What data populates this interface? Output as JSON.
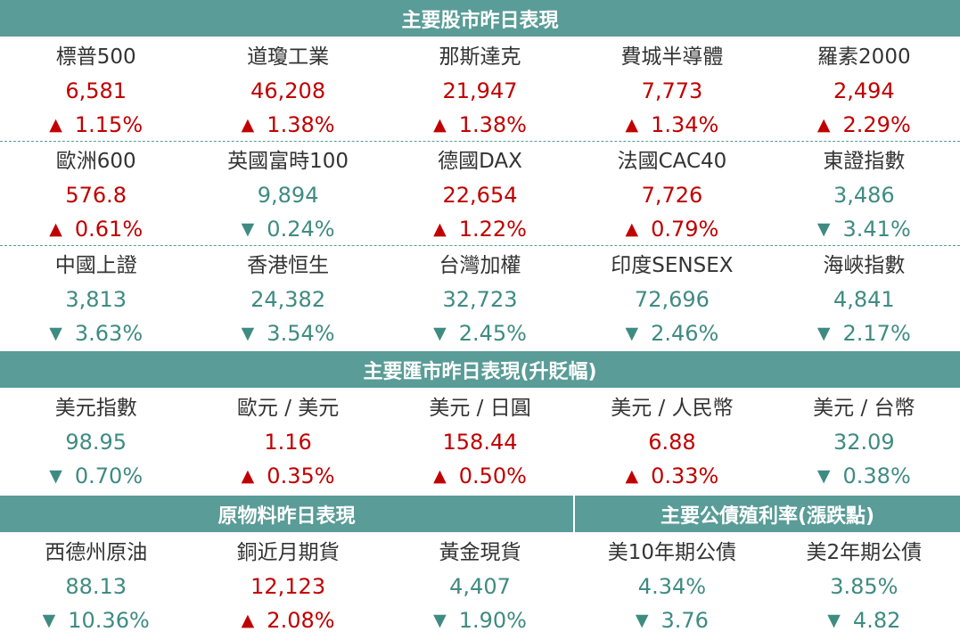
{
  "sections": {
    "stocks": {
      "title": "主要股市昨日表現",
      "rows": [
        [
          {
            "name": "標普500",
            "value": "6,581",
            "dir": "up",
            "change": "1.15%"
          },
          {
            "name": "道瓊工業",
            "value": "46,208",
            "dir": "up",
            "change": "1.38%"
          },
          {
            "name": "那斯達克",
            "value": "21,947",
            "dir": "up",
            "change": "1.38%"
          },
          {
            "name": "費城半導體",
            "value": "7,773",
            "dir": "up",
            "change": "1.34%"
          },
          {
            "name": "羅素2000",
            "value": "2,494",
            "dir": "up",
            "change": "2.29%"
          }
        ],
        [
          {
            "name": "歐洲600",
            "value": "576.8",
            "dir": "up",
            "change": "0.61%"
          },
          {
            "name": "英國富時100",
            "value": "9,894",
            "dir": "down",
            "change": "0.24%"
          },
          {
            "name": "德國DAX",
            "value": "22,654",
            "dir": "up",
            "change": "1.22%"
          },
          {
            "name": "法國CAC40",
            "value": "7,726",
            "dir": "up",
            "change": "0.79%"
          },
          {
            "name": "東證指數",
            "value": "3,486",
            "dir": "down",
            "change": "3.41%"
          }
        ],
        [
          {
            "name": "中國上證",
            "value": "3,813",
            "dir": "down",
            "change": "3.63%"
          },
          {
            "name": "香港恒生",
            "value": "24,382",
            "dir": "down",
            "change": "3.54%"
          },
          {
            "name": "台灣加權",
            "value": "32,723",
            "dir": "down",
            "change": "2.45%"
          },
          {
            "name": "印度SENSEX",
            "value": "72,696",
            "dir": "down",
            "change": "2.46%"
          },
          {
            "name": "海峽指數",
            "value": "4,841",
            "dir": "down",
            "change": "2.17%"
          }
        ]
      ]
    },
    "fx": {
      "title": "主要匯市昨日表現(升貶幅)",
      "rows": [
        [
          {
            "name": "美元指數",
            "value": "98.95",
            "dir": "down",
            "change": "0.70%"
          },
          {
            "name": "歐元 / 美元",
            "value": "1.16",
            "dir": "up",
            "change": "0.35%"
          },
          {
            "name": "美元 / 日圓",
            "value": "158.44",
            "dir": "up",
            "change": "0.50%"
          },
          {
            "name": "美元 / 人民幣",
            "value": "6.88",
            "dir": "up",
            "change": "0.33%"
          },
          {
            "name": "美元 / 台幣",
            "value": "32.09",
            "dir": "down",
            "change": "0.38%"
          }
        ]
      ]
    },
    "commodities": {
      "title": "原物料昨日表現"
    },
    "bonds": {
      "title": "主要公債殖利率(漲跌點)"
    },
    "bottom_row": [
      {
        "name": "西德州原油",
        "value": "88.13",
        "dir": "down",
        "change": "10.36%"
      },
      {
        "name": "銅近月期貨",
        "value": "12,123",
        "dir": "up",
        "change": "2.08%"
      },
      {
        "name": "黃金現貨",
        "value": "4,407",
        "dir": "down",
        "change": "1.90%"
      },
      {
        "name": "美10年期公債",
        "value": "4.34%",
        "dir": "down",
        "change": "3.76"
      },
      {
        "name": "美2年期公債",
        "value": "3.85%",
        "dir": "down",
        "change": "4.82"
      }
    ]
  },
  "symbols": {
    "up": "▲",
    "down": "▼"
  },
  "colors": {
    "header_bg": "#5a9c97",
    "up": "#c00000",
    "down": "#3f8b82",
    "label": "#333333"
  }
}
